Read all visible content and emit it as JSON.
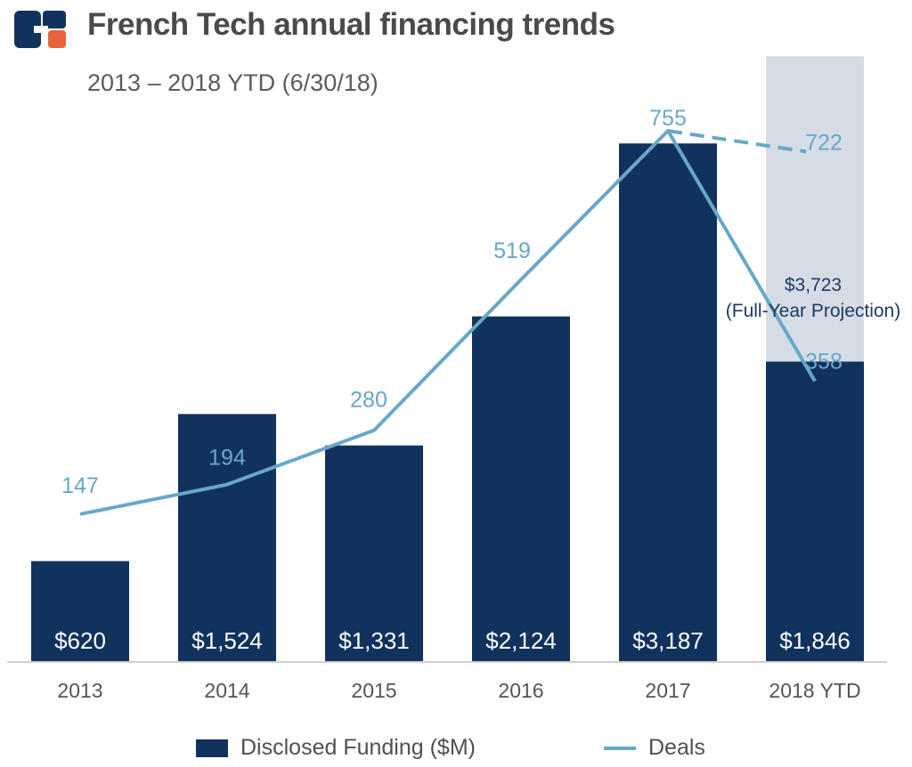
{
  "header": {
    "title": "French Tech annual financing trends",
    "subtitle": "2013 – 2018 YTD (6/30/18)"
  },
  "colors": {
    "funding_bar": "#12325e",
    "projection_bar": "#d5dce5",
    "deals_line": "#67a8c9",
    "logo_blue": "#12325e",
    "logo_orange": "#e8623a"
  },
  "chart_data": {
    "type": "bar",
    "title": "French Tech annual financing trends",
    "subtitle": "2013 – 2018 YTD (6/30/18)",
    "categories": [
      "2013",
      "2014",
      "2015",
      "2016",
      "2017",
      "2018 YTD"
    ],
    "ylim": [
      0,
      3850
    ],
    "series": [
      {
        "name": "Disclosed Funding ($M)",
        "type": "bar",
        "values": [
          620,
          1524,
          1331,
          2124,
          3187,
          1846
        ],
        "labels": [
          "$620",
          "$1,524",
          "$1,331",
          "$2,124",
          "$3,187",
          "$1,846"
        ]
      },
      {
        "name": "Deals",
        "type": "line",
        "values": [
          147,
          194,
          280,
          519,
          755,
          358
        ],
        "labels": [
          "147",
          "194",
          "280",
          "519",
          "755",
          "358"
        ]
      }
    ],
    "projection": {
      "category": "2018 YTD",
      "funding_value": 3723,
      "funding_label": "$3,723",
      "funding_note": "(Full-Year Projection)",
      "deals_value": 722,
      "deals_label": "722",
      "deals_from_category": "2017"
    },
    "legend": {
      "position": "bottom",
      "items": [
        "Disclosed Funding ($M)",
        "Deals"
      ]
    }
  }
}
